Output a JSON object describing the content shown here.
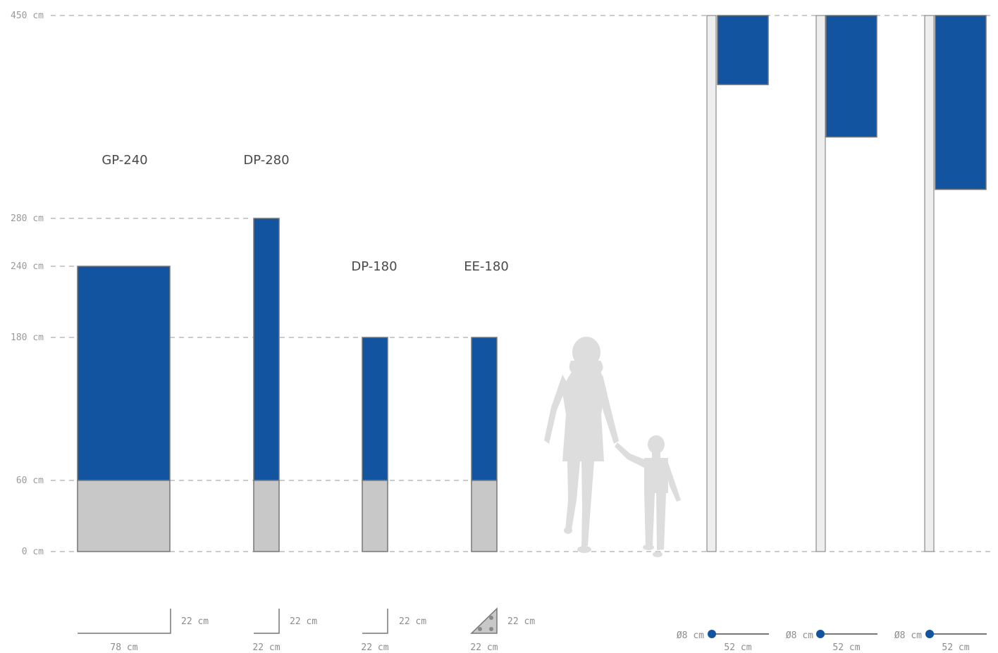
{
  "colors": {
    "panel": "#1254a0",
    "base": "#c8c8c8",
    "pole": "#eeeeee",
    "outline": "#777777",
    "gridline": "#999999",
    "silhouette": "#dddddd"
  },
  "scale": {
    "unit": "cm",
    "ticks": [
      {
        "value": 0,
        "label": "0 cm"
      },
      {
        "value": 60,
        "label": "60 cm"
      },
      {
        "value": 180,
        "label": "180 cm"
      },
      {
        "value": 240,
        "label": "240 cm"
      },
      {
        "value": 280,
        "label": "280 cm"
      },
      {
        "value": 450,
        "label": "450 cm"
      }
    ]
  },
  "pylons": [
    {
      "model": "GP-240",
      "height": 240,
      "base_height": 60,
      "footprint": {
        "depth": "22 cm",
        "width": "78 cm",
        "shape": "l-bracket"
      }
    },
    {
      "model": "DP-280",
      "height": 280,
      "base_height": 60,
      "footprint": {
        "depth": "22 cm",
        "width": "22 cm",
        "shape": "l-bracket"
      }
    },
    {
      "model": "DP-180",
      "height": 180,
      "base_height": 60,
      "footprint": {
        "depth": "22 cm",
        "width": "22 cm",
        "shape": "l-bracket"
      }
    },
    {
      "model": "EE-180",
      "height": 180,
      "base_height": 60,
      "footprint": {
        "depth": "22 cm",
        "width": "22 cm",
        "shape": "triangle"
      }
    }
  ],
  "flags": [
    {
      "pole_height": 450,
      "panel_bottom": 392,
      "footprint": {
        "diameter": "Ø8 cm",
        "width": "52 cm"
      }
    },
    {
      "pole_height": 450,
      "panel_bottom": 348,
      "footprint": {
        "diameter": "Ø8 cm",
        "width": "52 cm"
      }
    },
    {
      "pole_height": 450,
      "panel_bottom": 304,
      "footprint": {
        "diameter": "Ø8 cm",
        "width": "52 cm"
      }
    }
  ]
}
